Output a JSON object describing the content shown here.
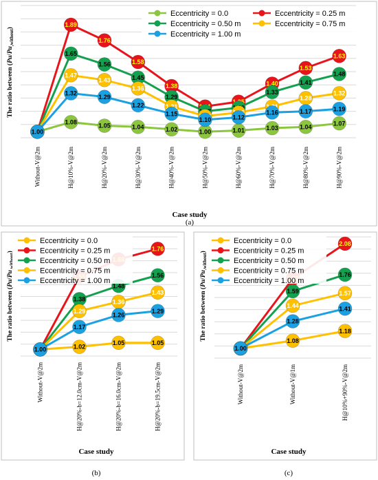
{
  "chart_data": [
    {
      "type": "line",
      "panel_label": "(a)",
      "xlabel": "Case study",
      "ylabel_parts": [
        "The ratio between (",
        "Pu",
        "/",
        "Pu",
        ",without",
        ")"
      ],
      "categories": [
        "Without-V@2m",
        "H@10%-V@2m",
        "H@20%-V@2m",
        "H@30%-V@2m",
        "H@40%-V@2m",
        "H@50%-V@2m",
        "H@60%-V@2m",
        "H@70%-V@2m",
        "H@80%-V@2m",
        "H@90%-V@2m"
      ],
      "ylim": [
        0.95,
        2.05
      ],
      "grid": true,
      "legend_position": "top-right",
      "series": [
        {
          "name": "Eccentricity = 0.0",
          "color": "#8cc63f",
          "text_color": "#000000",
          "values": [
            1.0,
            1.08,
            1.05,
            1.04,
            1.02,
            1.0,
            1.01,
            1.03,
            1.04,
            1.07
          ]
        },
        {
          "name": "Eccentricity = 0.25 m",
          "color": "#e8141c",
          "text_color": "#ffff00",
          "values": [
            1.0,
            1.89,
            1.76,
            1.58,
            1.38,
            1.21,
            1.25,
            1.4,
            1.53,
            1.63
          ]
        },
        {
          "name": "Eccentricity = 0.50 m",
          "color": "#13a14f",
          "text_color": "#000000",
          "values": [
            1.0,
            1.65,
            1.56,
            1.45,
            1.29,
            1.17,
            1.2,
            1.33,
            1.41,
            1.48
          ]
        },
        {
          "name": "Eccentricity = 0.75 m",
          "color": "#ffc000",
          "text_color": "#ffffff",
          "values": [
            1.0,
            1.47,
            1.43,
            1.36,
            1.21,
            1.13,
            1.16,
            1.21,
            1.28,
            1.32
          ]
        },
        {
          "name": "Eccentricity = 1.00 m",
          "color": "#1ba1e2",
          "text_color": "#000000",
          "values": [
            1.0,
            1.32,
            1.29,
            1.22,
            1.15,
            1.1,
            1.12,
            1.16,
            1.17,
            1.19
          ]
        }
      ]
    },
    {
      "type": "line",
      "panel_label": "(b)",
      "xlabel": "Case study",
      "ylabel_parts": [
        "The ratio between (",
        "Pu",
        "/",
        "Pu",
        ",without",
        ")"
      ],
      "categories": [
        "Without-V@2m",
        "H@20%-b=12.0cm-V@2m",
        "H@20%-b=16.0cm-V@2m",
        "H@20%-b=19.5cm-V@2m"
      ],
      "ylim": [
        0.95,
        1.85
      ],
      "grid": true,
      "legend_position": "top-left",
      "series": [
        {
          "name": "Eccentricity = 0.0",
          "color": "#ffc000",
          "text_color": "#000000",
          "values": [
            1.0,
            1.02,
            1.05,
            1.05
          ]
        },
        {
          "name": "Eccentricity = 0.25 m",
          "color": "#e8141c",
          "text_color": "#ffff00",
          "values": [
            1.0,
            1.55,
            1.68,
            1.76
          ]
        },
        {
          "name": "Eccentricity = 0.50 m",
          "color": "#13a14f",
          "text_color": "#000000",
          "values": [
            1.0,
            1.38,
            1.48,
            1.56
          ]
        },
        {
          "name": "Eccentricity = 0.75 m",
          "color": "#ffc000",
          "text_color": "#ffffff",
          "values": [
            1.0,
            1.29,
            1.36,
            1.43
          ]
        },
        {
          "name": "Eccentricity = 1.00 m",
          "color": "#1ba1e2",
          "text_color": "#000000",
          "values": [
            1.0,
            1.17,
            1.26,
            1.29
          ]
        }
      ]
    },
    {
      "type": "line",
      "panel_label": "(c)",
      "xlabel": "Case study",
      "ylabel_parts": [
        "The ratio between (",
        "Pu",
        "/",
        "Pu",
        ",without",
        ")"
      ],
      "categories": [
        "Without-V@2m",
        "Without-V@1m",
        "H@10%+90%-V@2m"
      ],
      "ylim": [
        0.9,
        2.15
      ],
      "grid": true,
      "legend_position": "top-left",
      "series": [
        {
          "name": "Eccentricity = 0.0",
          "color": "#ffc000",
          "text_color": "#000000",
          "values": [
            1.0,
            1.08,
            1.18
          ]
        },
        {
          "name": "Eccentricity = 0.25 m",
          "color": "#e8141c",
          "text_color": "#ffff00",
          "values": [
            1.0,
            1.72,
            2.08
          ]
        },
        {
          "name": "Eccentricity = 0.50 m",
          "color": "#13a14f",
          "text_color": "#000000",
          "values": [
            1.0,
            1.59,
            1.76
          ]
        },
        {
          "name": "Eccentricity = 0.75 m",
          "color": "#ffc000",
          "text_color": "#ffffff",
          "values": [
            1.0,
            1.44,
            1.57
          ]
        },
        {
          "name": "Eccentricity = 1.00 m",
          "color": "#1ba1e2",
          "text_color": "#000000",
          "values": [
            1.0,
            1.28,
            1.41
          ]
        }
      ]
    }
  ]
}
